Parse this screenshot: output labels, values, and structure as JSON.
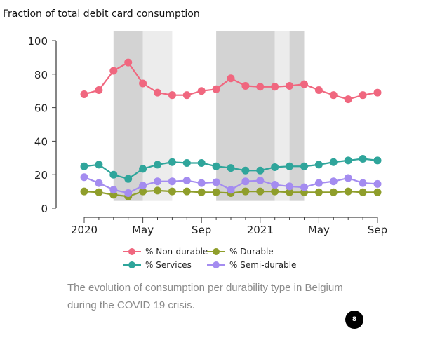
{
  "chart_data": {
    "type": "line",
    "title": "Fraction of total debit card consumption",
    "x": [
      "2020-01",
      "2020-02",
      "2020-03",
      "2020-04",
      "2020-05",
      "2020-06",
      "2020-07",
      "2020-08",
      "2020-09",
      "2020-10",
      "2020-11",
      "2020-12",
      "2021-01",
      "2021-02",
      "2021-03",
      "2021-04",
      "2021-05",
      "2021-06",
      "2021-07",
      "2021-08",
      "2021-09"
    ],
    "xtick_labels": [
      "2020",
      "May",
      "Sep",
      "2021",
      "May",
      "Sep"
    ],
    "xtick_positions": [
      "2020-01",
      "2020-05",
      "2020-09",
      "2021-01",
      "2021-05",
      "2021-09"
    ],
    "yticks": [
      0,
      20,
      40,
      60,
      80,
      100
    ],
    "ylim": [
      0,
      100
    ],
    "grid": false,
    "legend_placement": "bottom",
    "series": [
      {
        "name": "% Non-durable",
        "color": "#f0677f",
        "values": [
          68,
          70.5,
          82,
          87,
          74.5,
          69,
          67.5,
          67.5,
          70,
          71,
          77.5,
          73,
          72.5,
          72.5,
          73,
          74,
          70.5,
          67.5,
          65,
          67.5,
          69
        ]
      },
      {
        "name": "% Durable",
        "color": "#8f9e2b",
        "values": [
          10,
          9.5,
          8,
          7,
          10,
          10.5,
          10,
          10,
          9.5,
          9.5,
          9,
          10,
          10,
          10,
          9.5,
          9.5,
          9.5,
          9.5,
          10,
          9.5,
          9.5
        ]
      },
      {
        "name": "% Services",
        "color": "#2fa59b",
        "values": [
          25,
          26,
          20,
          17.5,
          23.5,
          26,
          27.5,
          27,
          27,
          25,
          24,
          22.5,
          22.5,
          24.5,
          25,
          25,
          26,
          27.5,
          28.5,
          29.5,
          28.5
        ]
      },
      {
        "name": "% Semi-durable",
        "color": "#a48cf0",
        "values": [
          18.5,
          15,
          11,
          9,
          13.5,
          16,
          16,
          16.5,
          15,
          15.5,
          11,
          16,
          16.5,
          14,
          13,
          12.5,
          15,
          16,
          18,
          15,
          14.5
        ]
      }
    ],
    "shaded_periods": [
      {
        "start": "2020-03",
        "end": "2020-05",
        "shade": "dark"
      },
      {
        "start": "2020-05",
        "end": "2020-07",
        "shade": "light"
      },
      {
        "start": "2020-10",
        "end": "2021-02",
        "shade": "dark"
      },
      {
        "start": "2021-02",
        "end": "2021-03",
        "shade": "light"
      },
      {
        "start": "2021-03",
        "end": "2021-04",
        "shade": "dark"
      }
    ]
  },
  "caption": "The evolution of consumption per durability type in Belgium during the COVID 19 crisis.",
  "page_badge": "8"
}
